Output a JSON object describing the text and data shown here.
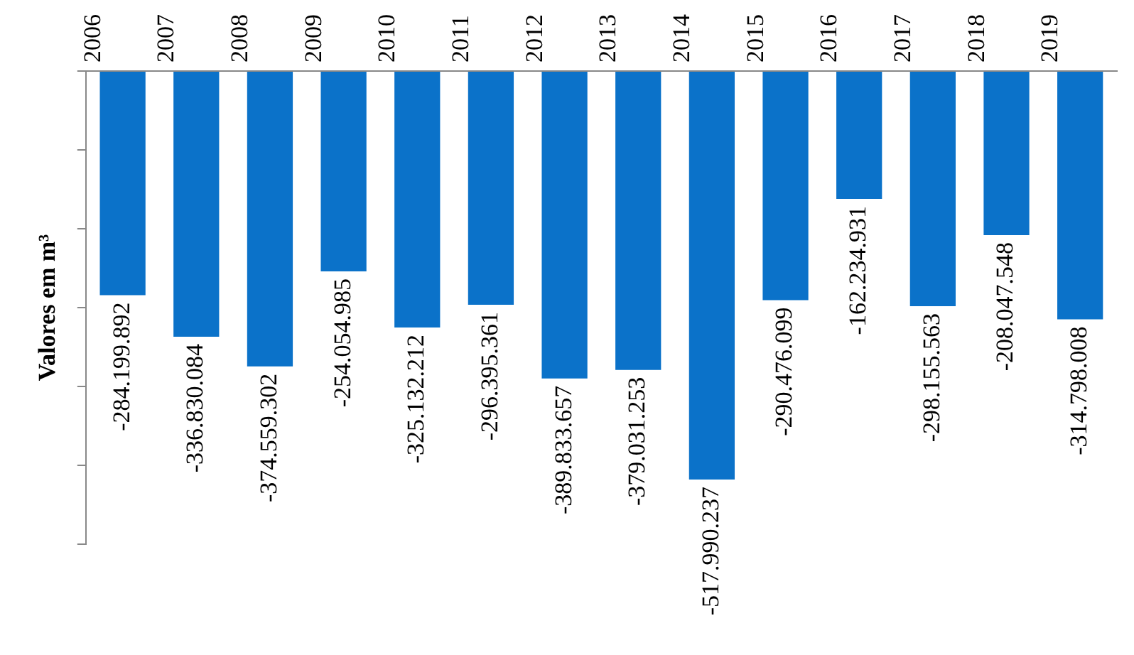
{
  "chart_data": {
    "type": "bar",
    "ylabel": "Valores em m³",
    "categories": [
      "2006",
      "2007",
      "2008",
      "2009",
      "2010",
      "2011",
      "2012",
      "2013",
      "2014",
      "2015",
      "2016",
      "2017",
      "2018",
      "2019"
    ],
    "values": [
      -284199892,
      -336830084,
      -374559302,
      -254054985,
      -325132212,
      -296395361,
      -389833657,
      -379031253,
      -517990237,
      -290476099,
      -162234931,
      -298155563,
      -208047548,
      -314798008
    ],
    "value_labels": [
      "-284.199.892",
      "-336.830.084",
      "-374.559.302",
      "-254.054.985",
      "-325.132.212",
      "-296.395.361",
      "-389.833.657",
      "-379.031.253",
      "-517.990.237",
      "-290.476.099",
      "-162.234.931",
      "-298.155.563",
      "-208.047.548",
      "-314.798.008"
    ],
    "color": "#0b72c9",
    "ylim": [
      -600000000,
      0
    ],
    "yticks": [
      {
        "value": -600000000,
        "label": null
      },
      {
        "value": -500000000,
        "label": null
      },
      {
        "value": -400000000,
        "label": null
      },
      {
        "value": -300000000,
        "label": null
      },
      {
        "value": -200000000,
        "label": null
      },
      {
        "value": -100000000,
        "label": null
      },
      {
        "value": 0,
        "label": null
      }
    ],
    "grid": false,
    "legend": false
  }
}
